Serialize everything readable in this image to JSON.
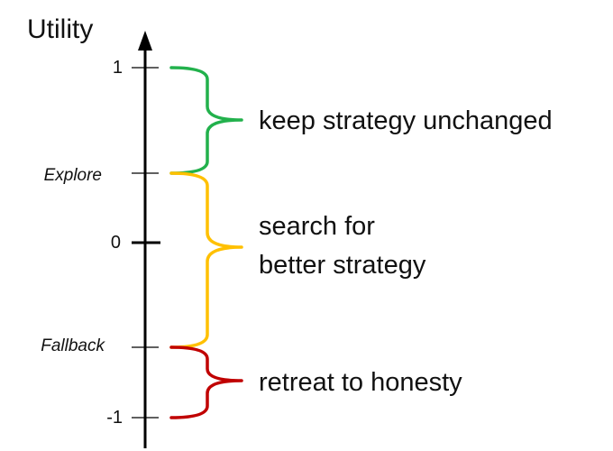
{
  "axis": {
    "title": "Utility",
    "ticks": [
      {
        "label": "1",
        "value": 1
      },
      {
        "label": "Explore",
        "value": 0.4
      },
      {
        "label": "0",
        "value": 0
      },
      {
        "label": "Fallback",
        "value": -0.6
      },
      {
        "label": "-1",
        "value": -1
      }
    ]
  },
  "regions": [
    {
      "label": "keep strategy unchanged",
      "from": "Explore",
      "to": "1",
      "color": "#22b14c"
    },
    {
      "label_line1": "search for",
      "label_line2": "better strategy",
      "from": "Fallback",
      "to": "Explore",
      "color": "#ffc000"
    },
    {
      "label": "retreat to honesty",
      "from": "-1",
      "to": "Fallback",
      "color": "#c00000"
    }
  ]
}
